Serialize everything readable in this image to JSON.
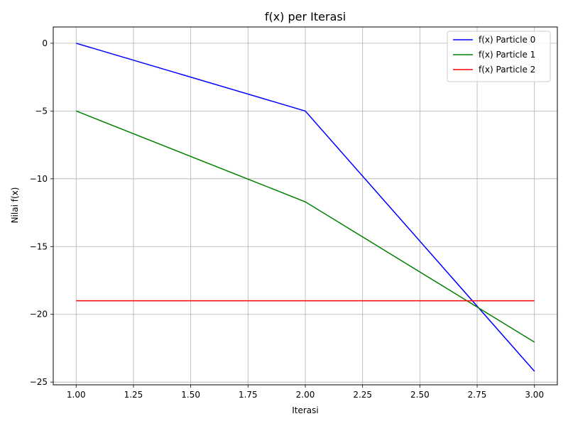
{
  "chart_data": {
    "type": "line",
    "title": "f(x) per Iterasi",
    "xlabel": "Iterasi",
    "ylabel": "Nilai f(x)",
    "x": [
      1,
      2,
      3
    ],
    "xlim": [
      0.9,
      3.1
    ],
    "ylim": [
      -25.2,
      1.2
    ],
    "xticks": [
      1.0,
      1.25,
      1.5,
      1.75,
      2.0,
      2.25,
      2.5,
      2.75,
      3.0
    ],
    "xtick_labels": [
      "1.00",
      "1.25",
      "1.50",
      "1.75",
      "2.00",
      "2.25",
      "2.50",
      "2.75",
      "3.00"
    ],
    "yticks": [
      0,
      -5,
      -10,
      -15,
      -20,
      -25
    ],
    "ytick_labels": [
      "0",
      "−5",
      "−10",
      "−15",
      "−20",
      "−25"
    ],
    "grid": true,
    "legend_position": "top-right",
    "series": [
      {
        "name": "f(x) Particle 0",
        "color": "#0000ff",
        "values": [
          0,
          -5,
          -24.2
        ]
      },
      {
        "name": "f(x) Particle 1",
        "color": "#008000",
        "values": [
          -5,
          -11.7,
          -22.05
        ]
      },
      {
        "name": "f(x) Particle 2",
        "color": "#ff0000",
        "values": [
          -19,
          -19,
          -19
        ]
      }
    ]
  }
}
